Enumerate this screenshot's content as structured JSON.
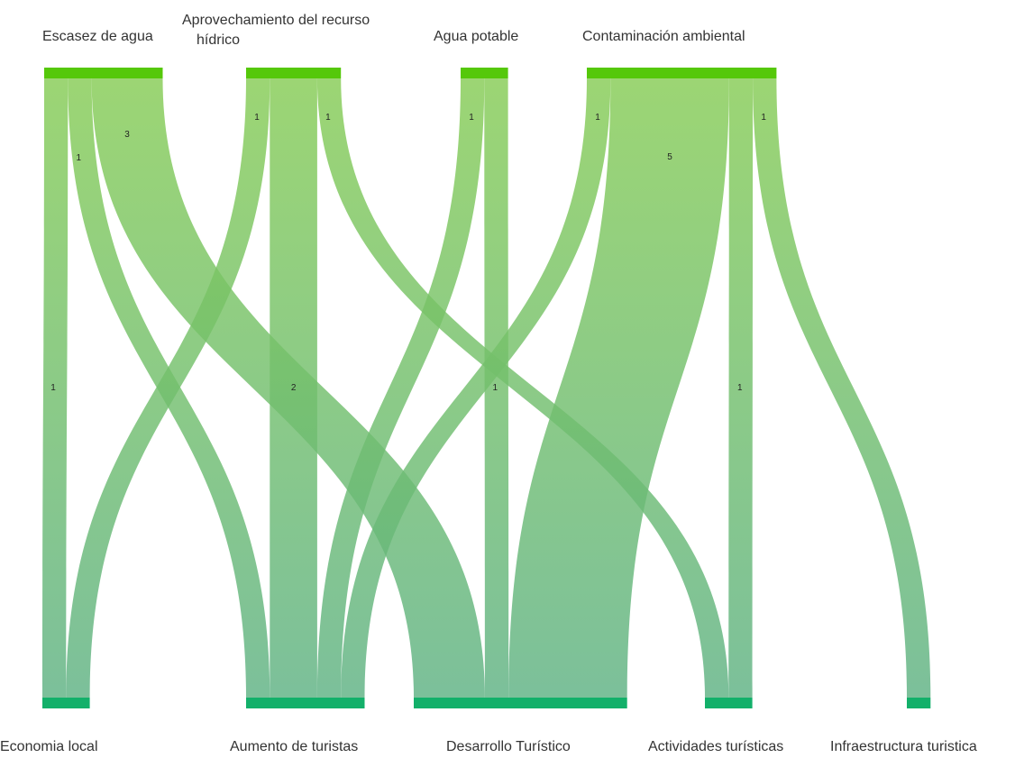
{
  "chart_data": {
    "type": "sankey",
    "title": "",
    "colors": {
      "node": "#55c80a",
      "node_bottom": "#13b06a",
      "link_top": "#86cc55",
      "link_bottom": "#5fb284"
    },
    "sources": [
      {
        "id": "escasez",
        "label_lines": [
          "Escasez de agua"
        ]
      },
      {
        "id": "aprovechamiento",
        "label_lines": [
          "Aprovechamiento del recurso",
          "hídrico"
        ]
      },
      {
        "id": "agua_potable",
        "label_lines": [
          "Agua potable"
        ]
      },
      {
        "id": "contaminacion",
        "label_lines": [
          "Contaminación ambiental"
        ]
      }
    ],
    "targets": [
      {
        "id": "economia",
        "label_lines": [
          "Economia local"
        ]
      },
      {
        "id": "aumento",
        "label_lines": [
          "Aumento de turistas"
        ]
      },
      {
        "id": "desarrollo",
        "label_lines": [
          "Desarrollo Turístico"
        ]
      },
      {
        "id": "actividades",
        "label_lines": [
          "Actividades turísticas"
        ]
      },
      {
        "id": "infraestructura",
        "label_lines": [
          "Infraestructura turistica"
        ]
      }
    ],
    "links": [
      {
        "source": "escasez",
        "target": "economia",
        "value": 1
      },
      {
        "source": "escasez",
        "target": "aumento",
        "value": 1
      },
      {
        "source": "escasez",
        "target": "desarrollo",
        "value": 3
      },
      {
        "source": "aprovechamiento",
        "target": "economia",
        "value": 1
      },
      {
        "source": "aprovechamiento",
        "target": "aumento",
        "value": 2
      },
      {
        "source": "aprovechamiento",
        "target": "actividades",
        "value": 1
      },
      {
        "source": "agua_potable",
        "target": "aumento",
        "value": 1
      },
      {
        "source": "agua_potable",
        "target": "desarrollo",
        "value": 1
      },
      {
        "source": "contaminacion",
        "target": "aumento",
        "value": 1
      },
      {
        "source": "contaminacion",
        "target": "desarrollo",
        "value": 5
      },
      {
        "source": "contaminacion",
        "target": "actividades",
        "value": 1
      },
      {
        "source": "contaminacion",
        "target": "infraestructura",
        "value": 1
      }
    ]
  }
}
